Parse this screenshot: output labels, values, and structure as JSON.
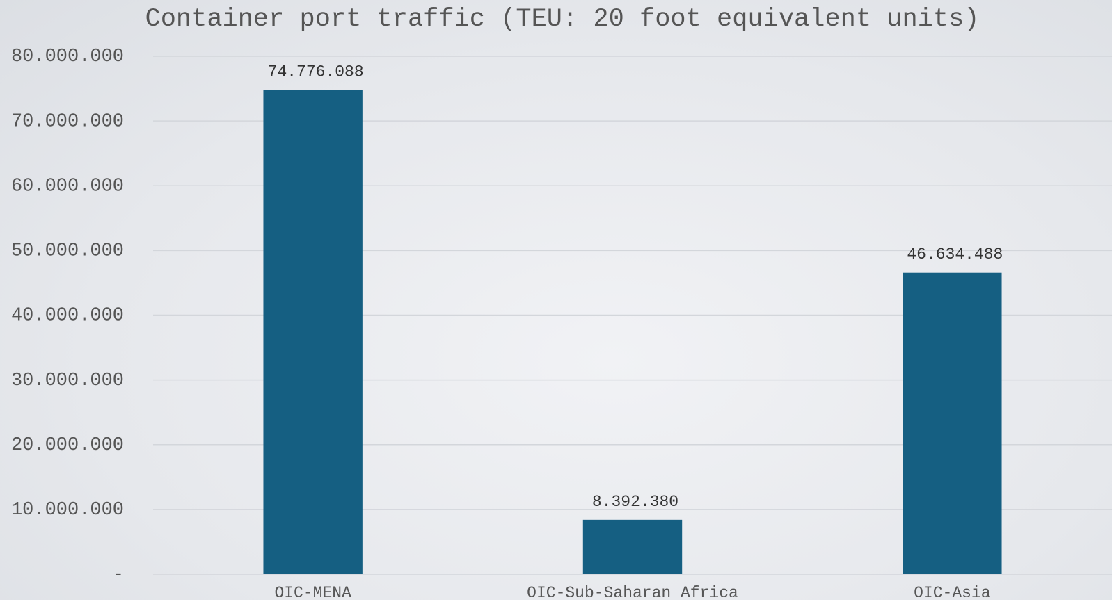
{
  "chart_data": {
    "type": "bar",
    "title": "Container port traffic (TEU: 20 foot equivalent units)",
    "categories": [
      "OIC-MENA",
      "OIC-Sub-Saharan Africa",
      "OIC-Asia"
    ],
    "values": [
      74776088,
      8392380,
      46634488
    ],
    "value_labels": [
      "74.776.088",
      "8.392.380",
      "46.634.488"
    ],
    "color": "#155f82",
    "ylim": [
      0,
      80000000
    ],
    "yticks": [
      {
        "value": 0,
        "label": "-"
      },
      {
        "value": 10000000,
        "label": "10.000.000"
      },
      {
        "value": 20000000,
        "label": "20.000.000"
      },
      {
        "value": 30000000,
        "label": "30.000.000"
      },
      {
        "value": 40000000,
        "label": "40.000.000"
      },
      {
        "value": 50000000,
        "label": "50.000.000"
      },
      {
        "value": 60000000,
        "label": "60.000.000"
      },
      {
        "value": 70000000,
        "label": "70.000.000"
      },
      {
        "value": 80000000,
        "label": "80.000.000"
      }
    ],
    "grid": true
  }
}
